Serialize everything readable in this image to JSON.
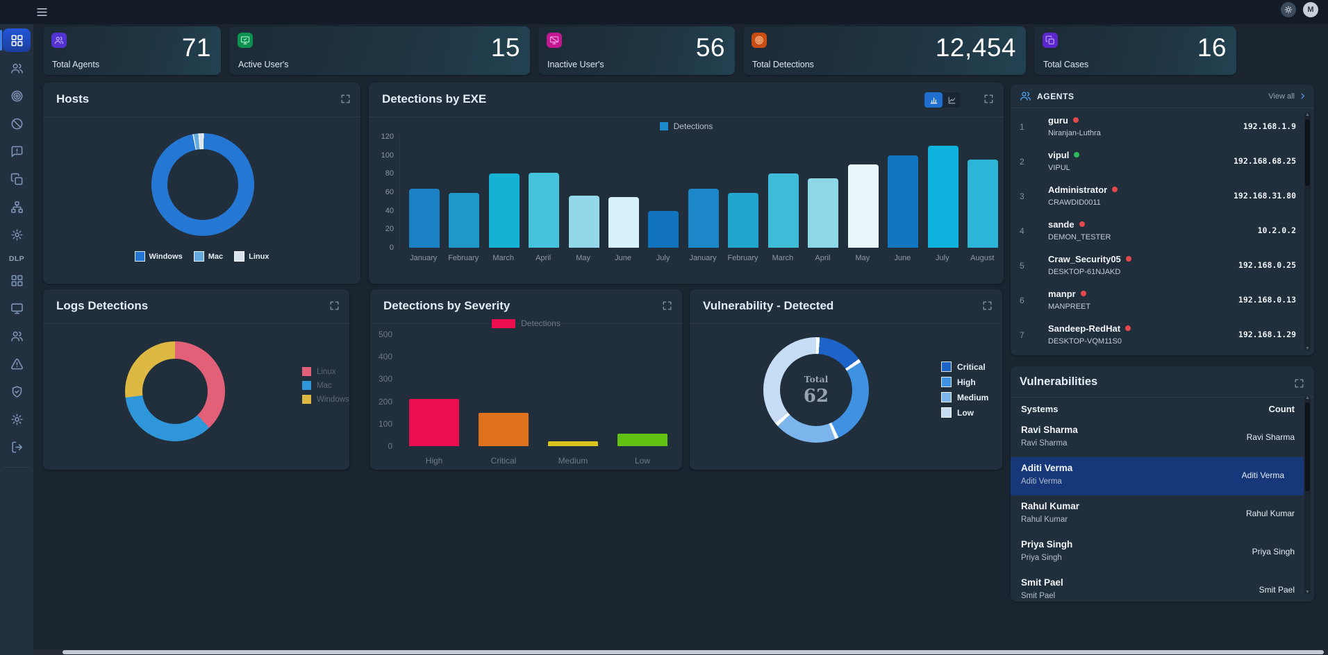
{
  "topbar": {
    "avatar_initial": "M"
  },
  "sidebar": {
    "section_label": "DLP",
    "items": [
      {
        "icon": "grid",
        "name": "dashboard",
        "active": true
      },
      {
        "icon": "users",
        "name": "agents"
      },
      {
        "icon": "target",
        "name": "detections"
      },
      {
        "icon": "ban",
        "name": "blocked"
      },
      {
        "icon": "message-alert",
        "name": "alerts"
      },
      {
        "icon": "copy",
        "name": "cases"
      },
      {
        "icon": "sitemap",
        "name": "network"
      },
      {
        "icon": "gear",
        "name": "settings"
      }
    ],
    "dlp_items": [
      {
        "icon": "grid",
        "name": "dlp-dashboard"
      },
      {
        "icon": "monitor",
        "name": "dlp-devices"
      },
      {
        "icon": "users",
        "name": "dlp-users"
      },
      {
        "icon": "alert-triangle",
        "name": "dlp-alerts"
      },
      {
        "icon": "shield-check",
        "name": "dlp-protection"
      },
      {
        "icon": "gear",
        "name": "dlp-settings"
      },
      {
        "icon": "logout",
        "name": "logout"
      }
    ]
  },
  "stats": [
    {
      "label": "Total Agents",
      "value": "71",
      "icon": "users",
      "icon_bg": "#5232d2",
      "icon_fg": "#c0b0ff"
    },
    {
      "label": "Active User's",
      "value": "15",
      "icon": "monitor-check",
      "icon_bg": "#0d9150",
      "icon_fg": "#a4f2c8"
    },
    {
      "label": "Inactive User's",
      "value": "56",
      "icon": "monitor-slash",
      "icon_bg": "#c2188f",
      "icon_fg": "#ff9ae2"
    },
    {
      "label": "Total Detections",
      "value": "12,454",
      "icon": "target",
      "icon_bg": "#c74d12",
      "icon_fg": "#ffc091"
    },
    {
      "label": "Total Cases",
      "value": "16",
      "icon": "copy",
      "icon_bg": "#5c27cf",
      "icon_fg": "#bda4f7"
    }
  ],
  "panels": {
    "hosts": {
      "title": "Hosts",
      "chart": {
        "type": "donut",
        "segments": [
          {
            "label": "Windows",
            "value": 96.8,
            "color": "#2478d4"
          },
          {
            "label": "Mac",
            "value": 1.8,
            "color": "#66abdf"
          },
          {
            "label": "Linux",
            "value": 1.4,
            "color": "#d9e4ee"
          }
        ]
      }
    },
    "exe": {
      "title": "Detections by EXE",
      "legend": "Detections",
      "legend_color": "#1d8bcb",
      "chart": {
        "type": "bar",
        "ylim": [
          0,
          120
        ],
        "yticks": [
          120,
          100,
          80,
          60,
          40,
          20,
          0
        ],
        "bars": [
          {
            "label": "January",
            "value": 64,
            "color": "#1b81c5"
          },
          {
            "label": "February",
            "value": 59,
            "color": "#1f97c9"
          },
          {
            "label": "March",
            "value": 80,
            "color": "#16b2d4"
          },
          {
            "label": "April",
            "value": 81,
            "color": "#45c3dd"
          },
          {
            "label": "May",
            "value": 56,
            "color": "#92d8e8"
          },
          {
            "label": "June",
            "value": 55,
            "color": "#d9f1f8"
          },
          {
            "label": "July",
            "value": 40,
            "color": "#1173bd"
          },
          {
            "label": "January",
            "value": 64,
            "color": "#1b86c8"
          },
          {
            "label": "February",
            "value": 59,
            "color": "#21a5cd"
          },
          {
            "label": "March",
            "value": 80,
            "color": "#3fbdd8"
          },
          {
            "label": "April",
            "value": 75,
            "color": "#8ed7e7"
          },
          {
            "label": "May",
            "value": 90,
            "color": "#e9f7fb"
          },
          {
            "label": "June",
            "value": 100,
            "color": "#1277c0"
          },
          {
            "label": "July",
            "value": 110,
            "color": "#0db3dc"
          },
          {
            "label": "August",
            "value": 95,
            "color": "#2db5d8"
          }
        ]
      }
    },
    "logs": {
      "title": "Logs Detections",
      "chart": {
        "type": "donut",
        "segments": [
          {
            "label": "Linux",
            "value": 38,
            "color": "#e26179"
          },
          {
            "label": "Mac",
            "value": 35,
            "color": "#2f97d9"
          },
          {
            "label": "Windows",
            "value": 27,
            "color": "#ddb842"
          }
        ]
      }
    },
    "severity": {
      "title": "Detections by Severity",
      "legend": "Detections",
      "legend_color": "#ea0e4f",
      "chart": {
        "type": "bar",
        "ylim": [
          0,
          500
        ],
        "yticks": [
          500,
          400,
          300,
          200,
          100,
          0
        ],
        "bars": [
          {
            "label": "High",
            "value": 210,
            "color": "#ed0e4f"
          },
          {
            "label": "Critical",
            "value": 150,
            "color": "#e0711c"
          },
          {
            "label": "Medium",
            "value": 22,
            "color": "#d9c51d"
          },
          {
            "label": "Low",
            "value": 55,
            "color": "#62c214"
          }
        ]
      }
    },
    "vulnerability": {
      "title": "Vulnerability - Detected",
      "center_label": "Total",
      "center_value": "62",
      "chart": {
        "type": "donut",
        "segments": [
          {
            "label": "Critical",
            "value": 15,
            "color": "#1e63c8"
          },
          {
            "label": "High",
            "value": 28,
            "color": "#3f92e2"
          },
          {
            "label": "Medium",
            "value": 20,
            "color": "#7cb5ec"
          },
          {
            "label": "Low",
            "value": 37,
            "color": "#c6ddf5"
          }
        ]
      }
    }
  },
  "agents": {
    "title": "AGENTS",
    "view_all": "View all",
    "rows": [
      {
        "index": "1",
        "name": "guru",
        "status": "offline",
        "host": "Niranjan-Luthra",
        "ip": "192.168.1.9"
      },
      {
        "index": "2",
        "name": "vipul",
        "status": "online",
        "host": "VIPUL",
        "ip": "192.168.68.25"
      },
      {
        "index": "3",
        "name": "Administrator",
        "status": "offline",
        "host": "CRAWDID0011",
        "ip": "192.168.31.80"
      },
      {
        "index": "4",
        "name": "sande",
        "status": "offline",
        "host": "DEMON_TESTER",
        "ip": "10.2.0.2"
      },
      {
        "index": "5",
        "name": "Craw_Security05",
        "status": "offline",
        "host": "DESKTOP-61NJAKD",
        "ip": "192.168.0.25"
      },
      {
        "index": "6",
        "name": "manpr",
        "status": "offline",
        "host": "MANPREET",
        "ip": "192.168.0.13"
      },
      {
        "index": "7",
        "name": "Sandeep-RedHat",
        "status": "offline",
        "host": "DESKTOP-VQM11S0",
        "ip": "192.168.1.29"
      }
    ]
  },
  "vulnerabilities": {
    "title": "Vulnerabilities",
    "col_systems": "Systems",
    "col_count": "Count",
    "rows": [
      {
        "name": "Ravi Sharma",
        "sub": "Ravi Sharma",
        "count": "Ravi Sharma",
        "highlighted": false
      },
      {
        "name": "Aditi Verma",
        "sub": "Aditi Verma",
        "count": "Aditi Verma",
        "highlighted": true
      },
      {
        "name": "Rahul Kumar",
        "sub": "Rahul Kumar",
        "count": "Rahul Kumar",
        "highlighted": false
      },
      {
        "name": "Priya Singh",
        "sub": "Priya Singh",
        "count": "Priya Singh",
        "highlighted": false
      },
      {
        "name": "Smit Pael",
        "sub": "Smit Pael",
        "count": "Smit Pael",
        "highlighted": false
      }
    ]
  }
}
